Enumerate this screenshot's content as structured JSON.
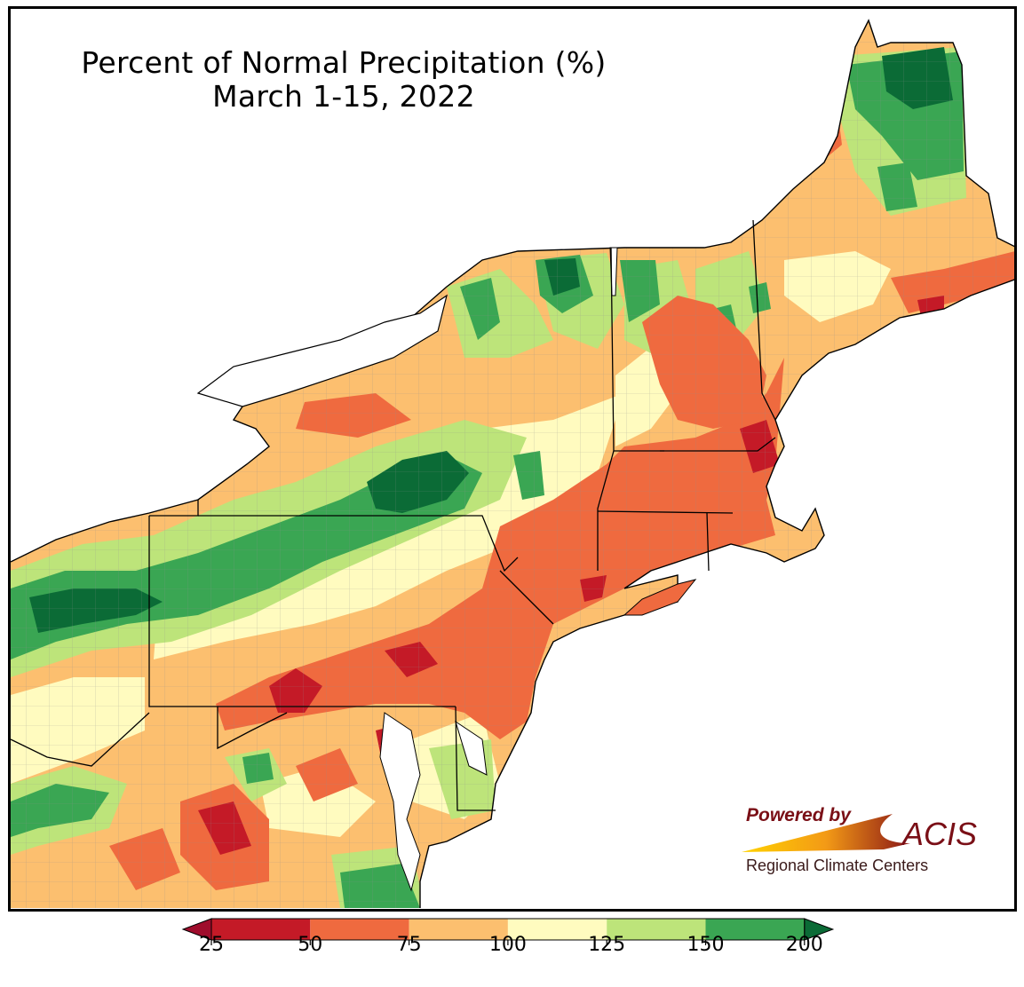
{
  "title": {
    "line1": "Percent of Normal Precipitation (%)",
    "line2": "March 1-15, 2022"
  },
  "logo": {
    "powered_by": "Powered by",
    "name": "ACIS",
    "subtitle": "Regional Climate Centers"
  },
  "legend": {
    "type": "colorbar",
    "extend": "both",
    "ticks": [
      "25",
      "50",
      "75",
      "100",
      "125",
      "150",
      "200"
    ],
    "colors": [
      "#c41a27",
      "#ef6a3f",
      "#fcbf6f",
      "#fffbbf",
      "#bde47a",
      "#3aa653"
    ],
    "under_color": "#9f0d2c",
    "over_color": "#0b6b36"
  },
  "colors": {
    "water": "#ffffff",
    "state_border": "#000000",
    "county_border": "#9a9a9a"
  }
}
